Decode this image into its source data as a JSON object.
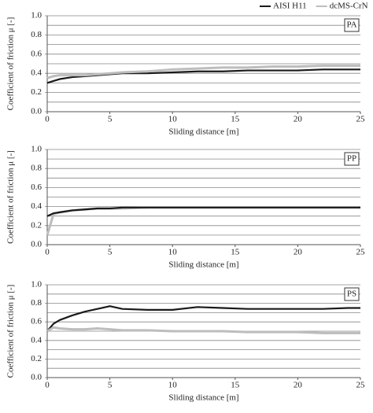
{
  "chart_data": [
    {
      "type": "line",
      "panel_label": "PA",
      "xlabel": "Sliding distance [m]",
      "ylabel": "Coefficient of friction μ [-]",
      "x": [
        0,
        0.5,
        1,
        2,
        3,
        4,
        5,
        6,
        8,
        10,
        12,
        14,
        16,
        18,
        20,
        22,
        24,
        25
      ],
      "series": [
        {
          "name": "AISI H11",
          "color": "#1a1a1a",
          "values": [
            0.3,
            0.32,
            0.34,
            0.36,
            0.37,
            0.38,
            0.39,
            0.4,
            0.4,
            0.41,
            0.42,
            0.42,
            0.43,
            0.43,
            0.43,
            0.44,
            0.44,
            0.44
          ]
        },
        {
          "name": "dcMS-CrN",
          "color": "#bdbdbd",
          "values": [
            0.35,
            0.37,
            0.38,
            0.38,
            0.38,
            0.39,
            0.4,
            0.41,
            0.42,
            0.44,
            0.45,
            0.46,
            0.46,
            0.47,
            0.47,
            0.48,
            0.48,
            0.48
          ]
        }
      ],
      "xlim": [
        0,
        25
      ],
      "ylim": [
        0,
        1
      ],
      "xticks": [
        0,
        5,
        10,
        15,
        20,
        25
      ],
      "yticks": [
        {
          "value": 0,
          "label": "0.0"
        },
        {
          "value": 0.2,
          "label": "0.2"
        },
        {
          "value": 0.4,
          "label": "0.4"
        },
        {
          "value": 0.6,
          "label": "0.6"
        },
        {
          "value": 0.8,
          "label": "0.8"
        },
        {
          "value": 1,
          "label": "1.0"
        }
      ],
      "minor_yticks": [
        0.1,
        0.3,
        0.5,
        0.7,
        0.9
      ],
      "grid": true
    },
    {
      "type": "line",
      "panel_label": "PP",
      "xlabel": "Sliding distance [m]",
      "ylabel": "Coefficient of friction μ [-]",
      "x": [
        0,
        0.5,
        1,
        2,
        3,
        4,
        5,
        6,
        8,
        10,
        12,
        14,
        16,
        18,
        20,
        22,
        24,
        25
      ],
      "series": [
        {
          "color": "#bdbdbd",
          "values": [
            0.1,
            0.32,
            0.34,
            0.36,
            0.37,
            0.38,
            0.38,
            0.38,
            0.39,
            0.39,
            0.39,
            0.39,
            0.39,
            0.39,
            0.39,
            0.39,
            0.39,
            0.39
          ]
        },
        {
          "color": "#1a1a1a",
          "values": [
            0.3,
            0.33,
            0.34,
            0.36,
            0.37,
            0.38,
            0.38,
            0.39,
            0.39,
            0.39,
            0.39,
            0.39,
            0.39,
            0.39,
            0.39,
            0.39,
            0.39,
            0.39
          ]
        }
      ],
      "xlim": [
        0,
        25
      ],
      "ylim": [
        0,
        1
      ],
      "xticks": [
        0,
        5,
        10,
        15,
        20,
        25
      ],
      "yticks": [
        {
          "value": 0,
          "label": "0.0"
        },
        {
          "value": 0.2,
          "label": "0.2"
        },
        {
          "value": 0.4,
          "label": "0.4"
        },
        {
          "value": 0.6,
          "label": "0.6"
        },
        {
          "value": 0.8,
          "label": "0.8"
        },
        {
          "value": 1,
          "label": "1.0"
        }
      ],
      "minor_yticks": [
        0.1,
        0.3,
        0.5,
        0.7,
        0.9
      ],
      "grid": true
    },
    {
      "type": "line",
      "panel_label": "PS",
      "xlabel": "Sliding distance [m]",
      "ylabel": "Coefficient of friction μ [-]",
      "x": [
        0,
        0.5,
        1,
        2,
        3,
        4,
        5,
        6,
        8,
        10,
        12,
        14,
        16,
        18,
        20,
        22,
        24,
        25
      ],
      "series": [
        {
          "color": "#1a1a1a",
          "values": [
            0.5,
            0.58,
            0.62,
            0.67,
            0.71,
            0.74,
            0.77,
            0.74,
            0.73,
            0.73,
            0.76,
            0.75,
            0.74,
            0.74,
            0.74,
            0.74,
            0.75,
            0.75
          ]
        },
        {
          "color": "#bdbdbd",
          "values": [
            0.5,
            0.54,
            0.53,
            0.52,
            0.52,
            0.53,
            0.52,
            0.51,
            0.51,
            0.5,
            0.5,
            0.5,
            0.49,
            0.49,
            0.49,
            0.48,
            0.48,
            0.48
          ]
        }
      ],
      "xlim": [
        0,
        25
      ],
      "ylim": [
        0,
        1
      ],
      "xticks": [
        0,
        5,
        10,
        15,
        20,
        25
      ],
      "yticks": [
        {
          "value": 0,
          "label": "0.0"
        },
        {
          "value": 0.2,
          "label": "0.2"
        },
        {
          "value": 0.4,
          "label": "0.4"
        },
        {
          "value": 0.6,
          "label": "0.6"
        },
        {
          "value": 0.8,
          "label": "0.8"
        },
        {
          "value": 1,
          "label": "1.0"
        }
      ],
      "minor_yticks": [
        0.1,
        0.3,
        0.5,
        0.7,
        0.9
      ],
      "grid": true
    }
  ]
}
